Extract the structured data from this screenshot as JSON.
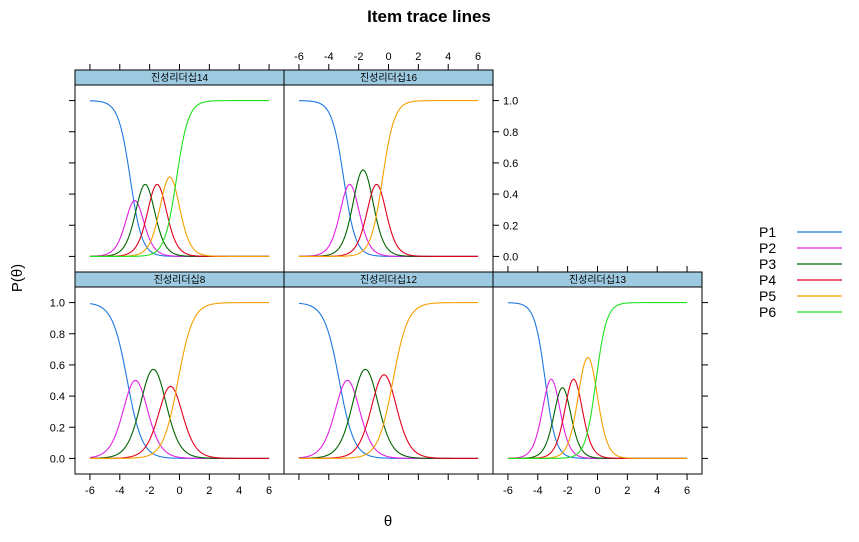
{
  "chart_data": {
    "type": "line",
    "title": "Item trace lines",
    "xlabel": "θ",
    "ylabel": "P(θ)",
    "xlim": [
      -7,
      7
    ],
    "ylim": [
      -0.1,
      1.1
    ],
    "x_ticks": [
      -6,
      -4,
      -2,
      0,
      2,
      4,
      6
    ],
    "y_ticks": [
      0.0,
      0.2,
      0.4,
      0.6,
      0.8,
      1.0
    ],
    "x_tick_labels": [
      "-6",
      "-4",
      "-2",
      "0",
      "2",
      "4",
      "6"
    ],
    "y_tick_labels": [
      "0.0",
      "0.2",
      "0.4",
      "0.6",
      "0.8",
      "1.0"
    ],
    "legend": {
      "placement": "right",
      "entries": [
        {
          "label": "P1",
          "color": "#1f78e0"
        },
        {
          "label": "P2",
          "color": "#e020e0"
        },
        {
          "label": "P3",
          "color": "#006400"
        },
        {
          "label": "P4",
          "color": "#e0001c"
        },
        {
          "label": "P5",
          "color": "#f5a000"
        },
        {
          "label": "P6",
          "color": "#20e020"
        }
      ]
    },
    "panels": [
      {
        "label": "진성리더십14",
        "row": 0,
        "col": 0,
        "slope": 2.5,
        "thresholds": [
          -3.3,
          -2.7,
          -1.9,
          -1.1,
          -0.2
        ]
      },
      {
        "label": "진성리더십16",
        "row": 0,
        "col": 1,
        "slope": 2.5,
        "thresholds": [
          -3.0,
          -2.2,
          -1.2,
          -0.4
        ]
      },
      {
        "label": "진성리더십8",
        "row": 1,
        "col": 0,
        "slope": 2.0,
        "thresholds": [
          -3.5,
          -2.4,
          -1.1,
          -0.1
        ]
      },
      {
        "label": "진성리더십12",
        "row": 1,
        "col": 1,
        "slope": 2.0,
        "thresholds": [
          -3.3,
          -2.2,
          -0.9,
          0.3
        ]
      },
      {
        "label": "진성리더십13",
        "row": 1,
        "col": 2,
        "slope": 2.8,
        "thresholds": [
          -3.5,
          -2.7,
          -2.0,
          -1.2,
          -0.1
        ]
      }
    ]
  }
}
